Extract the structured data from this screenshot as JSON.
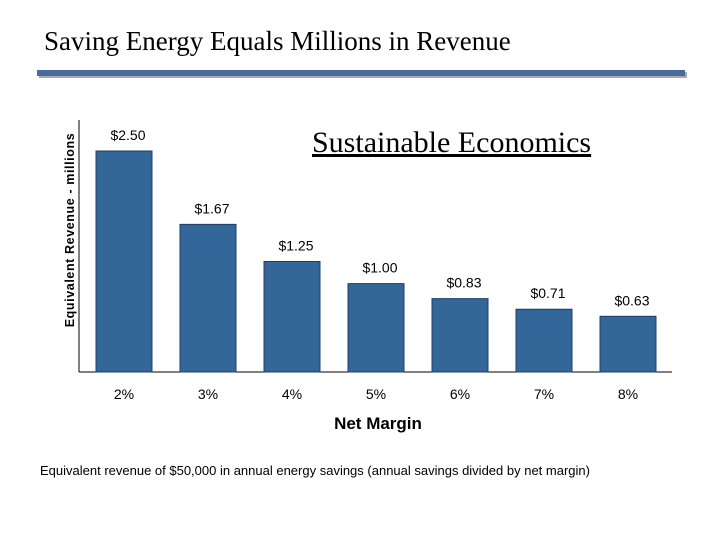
{
  "slide": {
    "title": "Saving Energy Equals Millions in Revenue",
    "caption": "Equivalent revenue of $50,000 in annual energy savings (annual savings divided by net margin)"
  },
  "chart_data": {
    "type": "bar",
    "title": "Sustainable Economics",
    "xlabel": "Net Margin",
    "ylabel": "Equivalent Revenue - millions",
    "categories": [
      "2%",
      "3%",
      "4%",
      "5%",
      "6%",
      "7%",
      "8%"
    ],
    "values": [
      2.5,
      1.67,
      1.25,
      1.0,
      0.83,
      0.71,
      0.63
    ],
    "value_labels": [
      "$2.50",
      "$1.67",
      "$1.25",
      "$1.00",
      "$0.83",
      "$0.71",
      "$0.63"
    ],
    "ylim": [
      0,
      2.5
    ],
    "grid": false,
    "legend": "none",
    "bar_color": "#336699"
  }
}
